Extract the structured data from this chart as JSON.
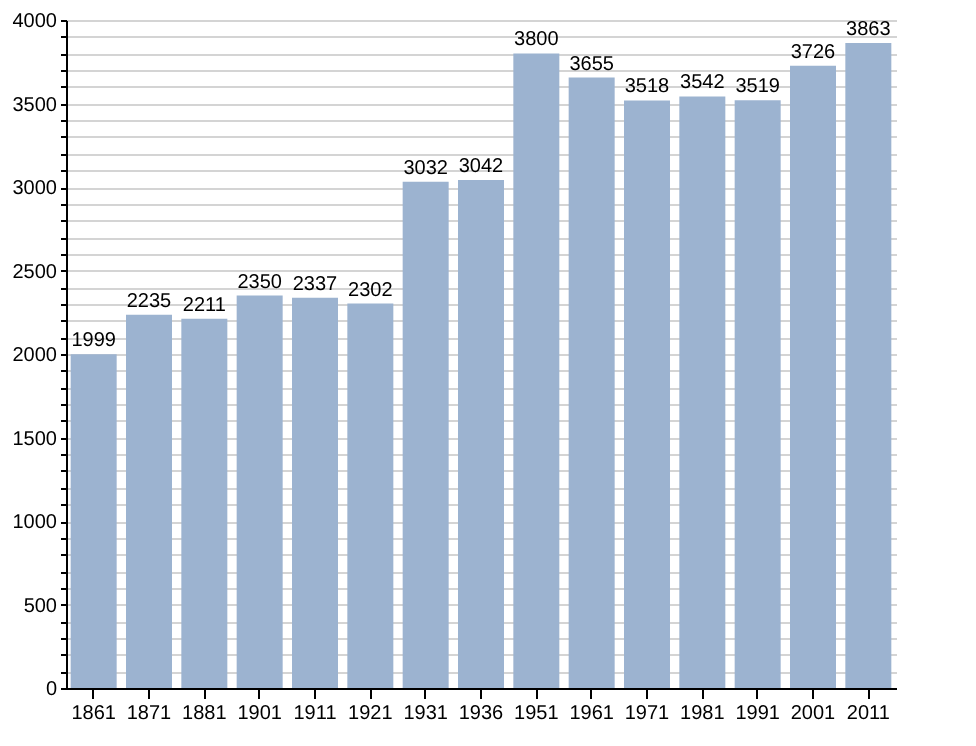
{
  "chart_data": {
    "type": "bar",
    "categories": [
      "1861",
      "1871",
      "1881",
      "1901",
      "1911",
      "1921",
      "1931",
      "1936",
      "1951",
      "1961",
      "1971",
      "1981",
      "1991",
      "2001",
      "2011"
    ],
    "values": [
      1999,
      2235,
      2211,
      2350,
      2337,
      2302,
      3032,
      3042,
      3800,
      3655,
      3518,
      3542,
      3519,
      3726,
      3863
    ],
    "color": "#9cb3d0",
    "ylim": [
      0,
      4000
    ],
    "yticks": [
      0,
      {
        "value": 100,
        "label": null
      },
      {
        "value": 200,
        "label": null
      },
      {
        "value": 300,
        "label": null
      },
      {
        "value": 400,
        "label": null
      },
      500,
      {
        "value": 600,
        "label": null
      },
      {
        "value": 700,
        "label": null
      },
      {
        "value": 800,
        "label": null
      },
      {
        "value": 900,
        "label": null
      },
      1000,
      {
        "value": 1100,
        "label": null
      },
      {
        "value": 1200,
        "label": null
      },
      {
        "value": 1300,
        "label": null
      },
      {
        "value": 1400,
        "label": null
      },
      1500,
      {
        "value": 1600,
        "label": null
      },
      {
        "value": 1700,
        "label": null
      },
      {
        "value": 1800,
        "label": null
      },
      {
        "value": 1900,
        "label": null
      },
      2000,
      {
        "value": 2100,
        "label": null
      },
      {
        "value": 2200,
        "label": null
      },
      {
        "value": 2300,
        "label": null
      },
      {
        "value": 2400,
        "label": null
      },
      2500,
      {
        "value": 2600,
        "label": null
      },
      {
        "value": 2700,
        "label": null
      },
      {
        "value": 2800,
        "label": null
      },
      {
        "value": 2900,
        "label": null
      },
      3000,
      {
        "value": 3100,
        "label": null
      },
      {
        "value": 3200,
        "label": null
      },
      {
        "value": 3300,
        "label": null
      },
      {
        "value": 3400,
        "label": null
      },
      3500,
      {
        "value": 3600,
        "label": null
      },
      {
        "value": 3700,
        "label": null
      },
      {
        "value": 3800,
        "label": null
      },
      {
        "value": 3900,
        "label": null
      },
      4000
    ],
    "grid": "y",
    "data_labels": true
  }
}
